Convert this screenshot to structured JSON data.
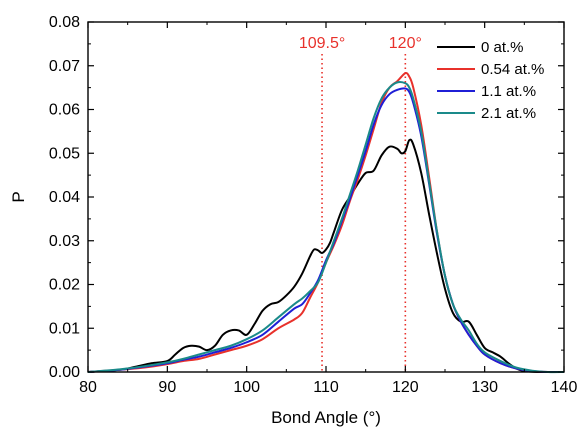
{
  "chart_data": {
    "type": "line",
    "xlabel": "Bond Angle (°)",
    "ylabel": "P",
    "xlim": [
      80,
      140
    ],
    "ylim": [
      0,
      0.08
    ],
    "xticks": [
      80,
      90,
      100,
      110,
      120,
      130,
      140
    ],
    "xtick_labels": [
      "80",
      "90",
      "100",
      "110",
      "120",
      "130",
      "140"
    ],
    "yticks": [
      0,
      0.01,
      0.02,
      0.03,
      0.04,
      0.05,
      0.06,
      0.07,
      0.08
    ],
    "ytick_labels": [
      "0.00",
      "0.01",
      "0.02",
      "0.03",
      "0.04",
      "0.05",
      "0.06",
      "0.07",
      "0.08"
    ],
    "grid": false,
    "legend_position": "top-right",
    "reference_lines": [
      {
        "x": 109.5,
        "label": "109.5°",
        "color": "#e8312b"
      },
      {
        "x": 120,
        "label": "120°",
        "color": "#e8312b"
      }
    ],
    "series": [
      {
        "name": "0 at.%",
        "color": "#000000",
        "points": [
          [
            80,
            0
          ],
          [
            84,
            0.0005
          ],
          [
            86,
            0.0012
          ],
          [
            88,
            0.002
          ],
          [
            90,
            0.0025
          ],
          [
            91,
            0.004
          ],
          [
            92,
            0.0055
          ],
          [
            93,
            0.006
          ],
          [
            94,
            0.0058
          ],
          [
            95,
            0.005
          ],
          [
            96,
            0.006
          ],
          [
            97,
            0.0085
          ],
          [
            98,
            0.0095
          ],
          [
            99,
            0.0095
          ],
          [
            100,
            0.0085
          ],
          [
            101,
            0.011
          ],
          [
            102,
            0.014
          ],
          [
            103,
            0.0155
          ],
          [
            104,
            0.016
          ],
          [
            105,
            0.0175
          ],
          [
            106,
            0.0195
          ],
          [
            107,
            0.0225
          ],
          [
            108,
            0.0265
          ],
          [
            108.5,
            0.028
          ],
          [
            109,
            0.0278
          ],
          [
            109.5,
            0.0272
          ],
          [
            110,
            0.028
          ],
          [
            110.5,
            0.0295
          ],
          [
            111,
            0.032
          ],
          [
            112,
            0.037
          ],
          [
            113,
            0.04
          ],
          [
            114,
            0.043
          ],
          [
            115,
            0.0455
          ],
          [
            116,
            0.046
          ],
          [
            117,
            0.0495
          ],
          [
            118,
            0.0515
          ],
          [
            119,
            0.051
          ],
          [
            119.5,
            0.05
          ],
          [
            120,
            0.0505
          ],
          [
            120.5,
            0.053
          ],
          [
            121,
            0.052
          ],
          [
            122,
            0.0455
          ],
          [
            123,
            0.036
          ],
          [
            124,
            0.027
          ],
          [
            125,
            0.019
          ],
          [
            126,
            0.0135
          ],
          [
            127,
            0.0115
          ],
          [
            128,
            0.0115
          ],
          [
            129,
            0.0085
          ],
          [
            130,
            0.0055
          ],
          [
            131,
            0.0045
          ],
          [
            132,
            0.0035
          ],
          [
            133,
            0.002
          ],
          [
            134,
            0.0008
          ],
          [
            135,
            0.0002
          ],
          [
            137,
            0
          ],
          [
            140,
            0
          ]
        ]
      },
      {
        "name": "0.54 at.%",
        "color": "#e8312b",
        "points": [
          [
            80,
            0
          ],
          [
            84,
            0.0005
          ],
          [
            87,
            0.001
          ],
          [
            90,
            0.0018
          ],
          [
            92,
            0.0025
          ],
          [
            94,
            0.003
          ],
          [
            96,
            0.004
          ],
          [
            98,
            0.005
          ],
          [
            100,
            0.006
          ],
          [
            102,
            0.0075
          ],
          [
            104,
            0.01
          ],
          [
            106,
            0.012
          ],
          [
            107,
            0.0135
          ],
          [
            108,
            0.017
          ],
          [
            109,
            0.0205
          ],
          [
            110,
            0.025
          ],
          [
            111,
            0.029
          ],
          [
            112,
            0.0335
          ],
          [
            113,
            0.039
          ],
          [
            114,
            0.044
          ],
          [
            115,
            0.0495
          ],
          [
            116,
            0.0555
          ],
          [
            117,
            0.0615
          ],
          [
            118,
            0.065
          ],
          [
            119,
            0.0665
          ],
          [
            120,
            0.0683
          ],
          [
            120.5,
            0.0675
          ],
          [
            121,
            0.065
          ],
          [
            122,
            0.0565
          ],
          [
            123,
            0.0445
          ],
          [
            124,
            0.032
          ],
          [
            125,
            0.022
          ],
          [
            126,
            0.0155
          ],
          [
            127,
            0.0115
          ],
          [
            128,
            0.0085
          ],
          [
            129,
            0.006
          ],
          [
            130,
            0.004
          ],
          [
            132,
            0.002
          ],
          [
            134,
            0.0008
          ],
          [
            136,
            0.0002
          ],
          [
            138,
            0
          ],
          [
            140,
            0
          ]
        ]
      },
      {
        "name": "1.1 at.%",
        "color": "#1f1fd6",
        "points": [
          [
            80,
            0
          ],
          [
            84,
            0.0005
          ],
          [
            87,
            0.0012
          ],
          [
            90,
            0.002
          ],
          [
            92,
            0.0028
          ],
          [
            94,
            0.0035
          ],
          [
            96,
            0.0045
          ],
          [
            98,
            0.0055
          ],
          [
            100,
            0.0068
          ],
          [
            102,
            0.0085
          ],
          [
            104,
            0.0115
          ],
          [
            106,
            0.0145
          ],
          [
            107,
            0.0155
          ],
          [
            108,
            0.018
          ],
          [
            109,
            0.021
          ],
          [
            110,
            0.0255
          ],
          [
            111,
            0.0295
          ],
          [
            112,
            0.0345
          ],
          [
            113,
            0.0395
          ],
          [
            114,
            0.045
          ],
          [
            115,
            0.0505
          ],
          [
            116,
            0.0565
          ],
          [
            117,
            0.061
          ],
          [
            118,
            0.0635
          ],
          [
            119,
            0.0645
          ],
          [
            120,
            0.0648
          ],
          [
            120.5,
            0.064
          ],
          [
            121,
            0.0615
          ],
          [
            122,
            0.054
          ],
          [
            123,
            0.043
          ],
          [
            124,
            0.0315
          ],
          [
            125,
            0.022
          ],
          [
            126,
            0.0155
          ],
          [
            127,
            0.0115
          ],
          [
            128,
            0.0085
          ],
          [
            129,
            0.006
          ],
          [
            130,
            0.004
          ],
          [
            132,
            0.002
          ],
          [
            134,
            0.0008
          ],
          [
            136,
            0.0002
          ],
          [
            138,
            0
          ],
          [
            140,
            0
          ]
        ]
      },
      {
        "name": "2.1 at.%",
        "color": "#1a8a8a",
        "points": [
          [
            80,
            0
          ],
          [
            84,
            0.0006
          ],
          [
            87,
            0.0013
          ],
          [
            90,
            0.0022
          ],
          [
            92,
            0.003
          ],
          [
            94,
            0.004
          ],
          [
            96,
            0.005
          ],
          [
            98,
            0.006
          ],
          [
            100,
            0.0075
          ],
          [
            102,
            0.0095
          ],
          [
            104,
            0.0125
          ],
          [
            106,
            0.0155
          ],
          [
            107,
            0.0168
          ],
          [
            108,
            0.0185
          ],
          [
            109,
            0.0205
          ],
          [
            110,
            0.025
          ],
          [
            111,
            0.03
          ],
          [
            112,
            0.035
          ],
          [
            113,
            0.0405
          ],
          [
            114,
            0.046
          ],
          [
            115,
            0.052
          ],
          [
            116,
            0.058
          ],
          [
            117,
            0.0625
          ],
          [
            118,
            0.065
          ],
          [
            119,
            0.0662
          ],
          [
            120,
            0.066
          ],
          [
            120.5,
            0.065
          ],
          [
            121,
            0.0625
          ],
          [
            122,
            0.055
          ],
          [
            123,
            0.0435
          ],
          [
            124,
            0.032
          ],
          [
            125,
            0.022
          ],
          [
            126,
            0.0155
          ],
          [
            127,
            0.012
          ],
          [
            128,
            0.0095
          ],
          [
            129,
            0.0065
          ],
          [
            130,
            0.0045
          ],
          [
            132,
            0.0025
          ],
          [
            134,
            0.001
          ],
          [
            136,
            0.0003
          ],
          [
            138,
            0
          ],
          [
            140,
            0
          ]
        ]
      }
    ]
  }
}
